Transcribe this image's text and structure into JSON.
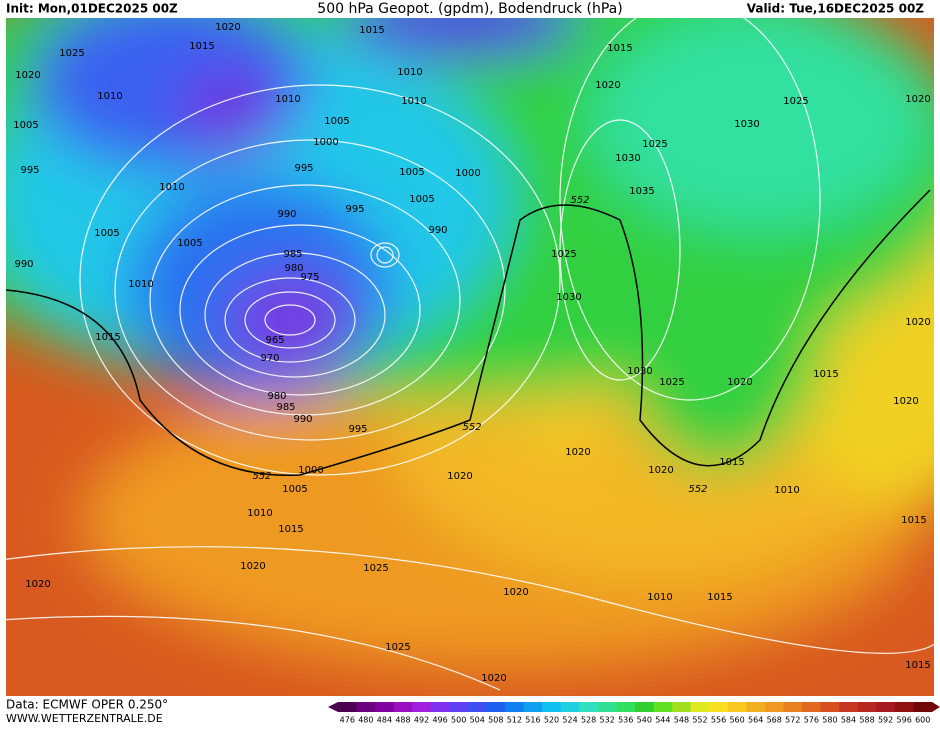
{
  "header": {
    "init": "Init: Mon,01DEC2025 00Z",
    "title": "500 hPa Geopot. (gpdm), Bodendruck (hPa)",
    "valid": "Valid: Tue,16DEC2025 00Z"
  },
  "footer": {
    "data": "Data: ECMWF OPER 0.250°",
    "site": "WWW.WETTERZENTRALE.DE"
  },
  "isobar_labels": [
    "1020",
    "1015",
    "1025",
    "1015",
    "1010",
    "1020",
    "1010",
    "1010",
    "1010",
    "1005",
    "1005",
    "1000",
    "995",
    "995",
    "1005",
    "1000",
    "1010",
    "1005",
    "990",
    "995",
    "1005",
    "1005",
    "990",
    "985",
    "980",
    "975",
    "990",
    "1010",
    "965",
    "970",
    "980",
    "985",
    "990",
    "995",
    "1015",
    "1000",
    "1005",
    "1010",
    "1015",
    "1020",
    "1020",
    "1025",
    "1020",
    "1020",
    "1025",
    "1020",
    "1015",
    "1020",
    "1025",
    "1020",
    "1030",
    "1025",
    "1030",
    "1035",
    "1025",
    "1030",
    "1030",
    "1025",
    "1020",
    "1015",
    "1020",
    "1020",
    "1020",
    "1020",
    "1015",
    "1010",
    "1015",
    "1010",
    "1015",
    "1015"
  ],
  "contour_labels": [
    "552",
    "552",
    "552",
    "552"
  ],
  "colorbar": {
    "levels": [
      476,
      480,
      484,
      488,
      492,
      496,
      500,
      504,
      508,
      512,
      516,
      520,
      524,
      528,
      532,
      536,
      540,
      544,
      548,
      552,
      556,
      560,
      564,
      568,
      572,
      576,
      580,
      584,
      588,
      592,
      596,
      600
    ],
    "colors": [
      "#4b0050",
      "#6a0080",
      "#8000a0",
      "#9a10c0",
      "#a020e0",
      "#8030f0",
      "#6040f0",
      "#4050f0",
      "#2060f0",
      "#1080f0",
      "#10a0f0",
      "#10c0f0",
      "#20d0e0",
      "#30e0c0",
      "#30e090",
      "#30e060",
      "#30d030",
      "#60e020",
      "#a0e020",
      "#e0e820",
      "#f8e020",
      "#f8c820",
      "#f0b020",
      "#f09820",
      "#e88020",
      "#e06820",
      "#d85020",
      "#c83820",
      "#b82820",
      "#a81820",
      "#901010",
      "#700808"
    ]
  }
}
